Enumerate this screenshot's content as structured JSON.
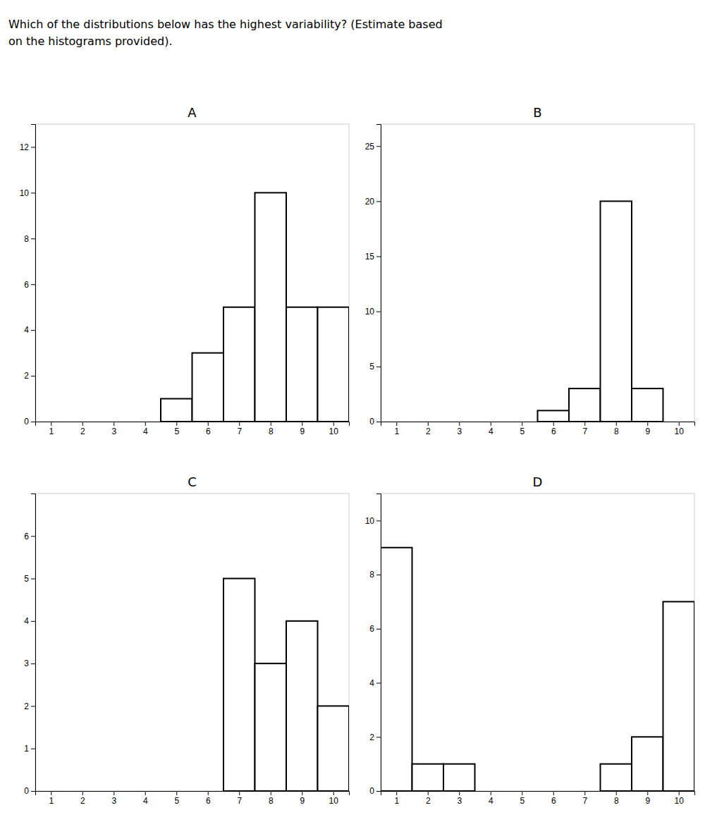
{
  "title": [
    "Which of the distributions below has the highest variability? (Estimate based",
    "on the histograms provided)."
  ],
  "chart_data": [
    {
      "type": "bar",
      "title": "A",
      "color": "white",
      "grid": false,
      "x": [
        5,
        6,
        7,
        8,
        9,
        10
      ],
      "values": [
        1,
        3,
        5,
        10,
        5,
        5
      ],
      "xlim": [
        0.5,
        10.5
      ],
      "ylim": [
        0,
        13
      ],
      "xticks": [
        1,
        2,
        3,
        4,
        5,
        6,
        7,
        8,
        9,
        10
      ],
      "yticks": [
        0,
        2,
        4,
        6,
        8,
        10,
        12
      ]
    },
    {
      "type": "bar",
      "title": "B",
      "color": "white",
      "grid": false,
      "x": [
        6,
        7,
        8,
        9
      ],
      "values": [
        1,
        3,
        20,
        3
      ],
      "xlim": [
        0.5,
        10.5
      ],
      "ylim": [
        0,
        27
      ],
      "xticks": [
        1,
        2,
        3,
        4,
        5,
        6,
        7,
        8,
        9,
        10
      ],
      "yticks": [
        0,
        5,
        10,
        15,
        20,
        25
      ]
    },
    {
      "type": "bar",
      "title": "C",
      "color": "white",
      "grid": false,
      "x": [
        7,
        8,
        9,
        10
      ],
      "values": [
        5,
        3,
        4,
        2
      ],
      "xlim": [
        0.5,
        10.5
      ],
      "ylim": [
        0,
        7
      ],
      "xticks": [
        1,
        2,
        3,
        4,
        5,
        6,
        7,
        8,
        9,
        10
      ],
      "yticks": [
        0,
        1,
        2,
        3,
        4,
        5,
        6
      ]
    },
    {
      "type": "bar",
      "title": "D",
      "color": "white",
      "grid": false,
      "x": [
        1,
        2,
        3,
        8,
        9,
        10
      ],
      "values": [
        9,
        1,
        1,
        1,
        2,
        7
      ],
      "xlim": [
        0.5,
        10.5
      ],
      "ylim": [
        0,
        11
      ],
      "xticks": [
        1,
        2,
        3,
        4,
        5,
        6,
        7,
        8,
        9,
        10
      ],
      "yticks": [
        0,
        2,
        4,
        6,
        8,
        10
      ]
    }
  ]
}
